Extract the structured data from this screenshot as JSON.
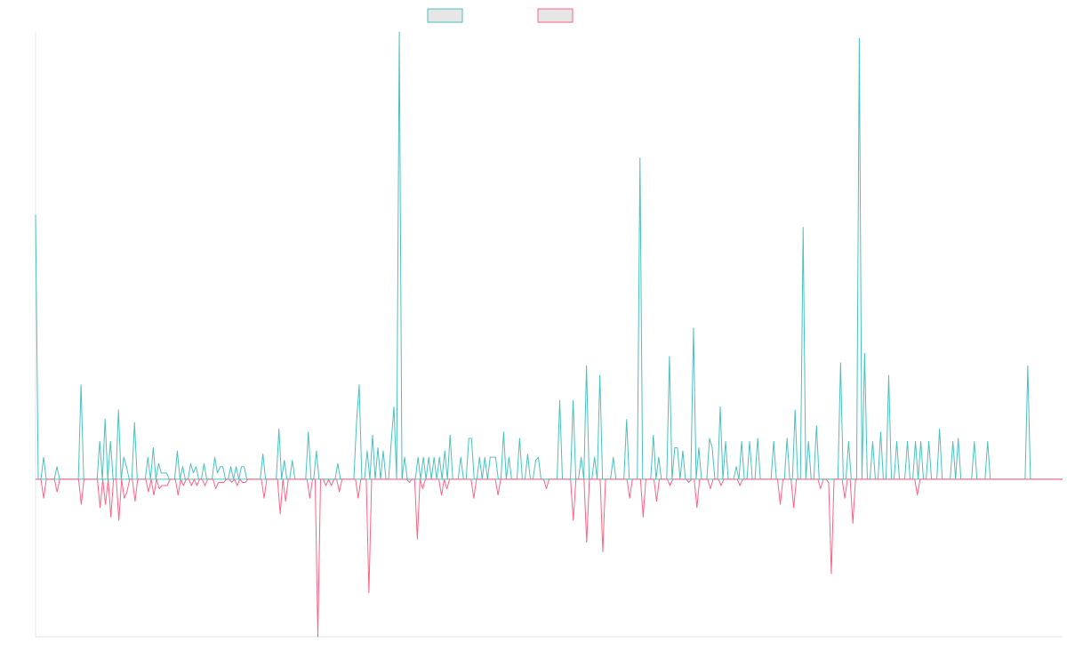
{
  "chart_data": {
    "type": "line",
    "title": "",
    "xlabel": "",
    "ylabel": "",
    "ylim": [
      -25,
      71
    ],
    "grid": false,
    "legend_position": "top-center",
    "colors": {
      "positive": "#4bc0c0",
      "negative": "#ff6384",
      "legend_fill": "#e6e6e6"
    },
    "series": [
      {
        "name": "",
        "values": [
          42,
          0,
          0,
          3.5,
          0,
          0,
          0,
          0,
          2,
          0,
          0,
          0,
          0,
          0,
          0,
          0,
          0,
          15,
          0,
          0,
          0,
          0,
          0,
          0,
          6,
          0,
          9.5,
          0,
          6,
          0,
          0,
          11,
          0,
          3.5,
          2,
          0,
          0,
          9,
          0,
          0,
          0,
          0,
          3.5,
          0,
          5,
          0,
          2.5,
          1,
          1,
          1,
          0,
          0,
          0,
          4.5,
          0,
          2,
          0,
          0,
          2.5,
          1,
          2,
          0,
          0,
          2.5,
          0,
          0,
          0,
          3.5,
          1,
          2,
          2,
          0,
          0,
          2,
          0,
          2,
          0,
          2,
          2,
          0,
          0,
          0,
          0,
          0,
          0,
          4,
          0,
          0,
          0,
          0,
          0,
          8,
          0,
          3,
          0,
          0,
          3,
          0,
          0,
          0,
          0,
          0,
          7.5,
          0,
          0,
          4.5,
          0,
          0,
          0,
          0,
          0,
          0,
          0,
          2.5,
          0,
          0,
          0,
          0,
          0,
          0,
          9,
          15,
          0,
          0,
          4.5,
          0,
          7,
          0,
          5,
          0,
          4.5,
          0,
          0,
          6,
          11.5,
          0,
          71,
          0,
          3.5,
          0,
          0,
          0,
          0,
          3.5,
          0,
          3.5,
          0,
          3.5,
          0,
          3.5,
          0,
          3.5,
          0,
          4.5,
          0,
          7,
          0,
          0,
          0,
          3.5,
          0,
          0,
          6.5,
          6.5,
          0,
          0,
          3.5,
          0,
          3.5,
          0,
          3.5,
          3.5,
          3.5,
          0,
          0,
          7.5,
          0,
          3.5,
          0,
          0,
          0,
          6.5,
          0,
          0,
          4,
          0,
          0,
          3,
          3.5,
          0,
          0,
          0,
          0,
          0,
          0,
          0,
          12.5,
          0,
          0,
          0,
          0,
          12.5,
          0,
          0,
          3.5,
          0,
          18,
          0,
          0,
          3.5,
          0,
          16.5,
          0,
          0,
          0,
          0,
          3.5,
          0,
          0,
          0,
          0,
          9.5,
          0,
          0,
          0,
          0,
          51,
          0,
          0,
          0,
          0,
          7,
          0,
          3.5,
          0,
          0,
          0,
          19.5,
          0,
          5,
          5,
          0,
          4.5,
          0,
          0,
          0,
          24,
          0,
          5,
          0,
          0,
          0,
          6.5,
          5,
          0,
          0,
          11.5,
          0,
          6,
          0,
          0,
          0,
          2,
          0,
          6,
          0,
          0,
          6,
          0,
          0,
          6.5,
          0,
          0,
          0,
          0,
          0,
          6,
          0,
          0,
          0,
          0,
          6.5,
          0,
          0,
          11,
          0,
          0,
          40,
          0,
          6,
          0,
          0,
          8.5,
          0,
          0,
          0,
          0,
          0,
          0,
          0,
          0,
          18.5,
          0,
          0,
          6,
          0,
          0,
          0,
          70,
          0,
          20,
          0,
          0,
          6,
          0,
          0,
          7.5,
          0,
          0,
          16.5,
          0,
          0,
          6,
          0,
          0,
          0,
          6,
          0,
          0,
          6,
          0,
          6,
          0,
          0,
          6,
          0,
          0,
          0,
          8,
          0,
          0,
          0,
          0,
          6,
          0,
          6.5,
          0,
          0,
          0,
          0,
          0,
          6,
          0,
          0,
          0,
          0,
          6,
          0,
          0,
          0,
          0,
          0,
          0,
          0,
          0,
          0,
          0,
          0,
          0,
          0,
          0,
          18,
          0,
          0,
          0,
          0,
          0,
          0,
          0,
          0,
          0,
          0,
          0,
          0,
          0
        ]
      },
      {
        "name": "",
        "values": [
          0,
          0,
          0,
          -3,
          0,
          0,
          0,
          0,
          -2,
          0,
          0,
          0,
          0,
          0,
          0,
          0,
          0,
          -4,
          0,
          0,
          0,
          0,
          0,
          0,
          -4.5,
          0,
          -4,
          0,
          -6,
          0,
          0,
          -6.5,
          0,
          -3,
          -2,
          0,
          0,
          -3.5,
          0,
          0,
          0,
          0,
          -2,
          0,
          -2.5,
          0,
          -1.5,
          -1,
          -1,
          -1,
          0,
          0,
          0,
          -2.5,
          0,
          -1,
          0,
          0,
          -1,
          0,
          -1,
          0,
          0,
          -1,
          0,
          0,
          0,
          -1.5,
          -0.5,
          -0.5,
          -0.5,
          0,
          0,
          -0.5,
          0,
          -1,
          0,
          -0.5,
          -0.5,
          0,
          0,
          0,
          0,
          0,
          0,
          -3,
          0,
          0,
          0,
          0,
          0,
          -5.5,
          0,
          -3.5,
          0,
          0,
          0,
          0,
          0,
          0,
          0,
          0,
          -3,
          0,
          0,
          -25,
          0,
          0,
          -1,
          0,
          -1,
          0,
          0,
          -2,
          0,
          0,
          0,
          0,
          0,
          0,
          -3,
          0,
          0,
          0,
          -18,
          0,
          0,
          0,
          0,
          0,
          0,
          0,
          0,
          0,
          0,
          0,
          0,
          0,
          0,
          -0.5,
          0,
          0,
          -9.5,
          0,
          -1.5,
          0,
          0,
          0,
          0,
          0,
          0,
          -2.5,
          0,
          -1.5,
          0,
          0,
          0,
          0,
          0,
          0,
          0,
          0,
          0,
          -3,
          0,
          0,
          0,
          0,
          0,
          0,
          0,
          0,
          -2.5,
          0,
          0,
          0,
          0,
          0,
          0,
          0,
          0,
          0,
          0,
          0,
          0,
          0,
          0,
          0,
          0,
          0,
          -1.5,
          0,
          0,
          0,
          0,
          0,
          0,
          0,
          0,
          0,
          -6.5,
          0,
          0,
          0,
          0,
          -10,
          0,
          0,
          0,
          0,
          0,
          -11.5,
          0,
          0,
          0,
          0,
          0,
          0,
          0,
          0,
          0,
          -3,
          0,
          0,
          0,
          0,
          -6,
          0,
          0,
          0,
          0,
          -3.5,
          0,
          0,
          0,
          0,
          -1,
          0,
          0,
          0,
          0,
          0,
          0,
          -0.5,
          0,
          0,
          -4.5,
          0,
          0,
          0,
          0,
          -1.5,
          0,
          0,
          0,
          -1,
          0,
          0,
          0,
          0,
          0,
          0,
          -1,
          0,
          0,
          0,
          0,
          0,
          0,
          0,
          0,
          0,
          0,
          0,
          0,
          0,
          0,
          -4,
          0,
          0,
          0,
          0,
          -4.5,
          0,
          0,
          0,
          0,
          0,
          0,
          0,
          0,
          0,
          -1.5,
          0,
          0,
          -0.5,
          -15,
          0,
          0,
          0,
          0,
          -3,
          0,
          0,
          -7,
          0,
          0,
          0,
          0,
          0,
          0,
          0,
          0,
          0,
          0,
          0,
          0,
          0,
          0,
          0,
          0,
          0,
          0,
          0,
          0,
          0,
          0,
          0,
          -2.5,
          0,
          0,
          0,
          0,
          0,
          0,
          0,
          0,
          0,
          0,
          0,
          0,
          0,
          0,
          0,
          0,
          0,
          0,
          0,
          0,
          0,
          0,
          0,
          0,
          0,
          0,
          0,
          0,
          0,
          0,
          0,
          0,
          0,
          0,
          0,
          0,
          0,
          0,
          0,
          0,
          0,
          0,
          0,
          0,
          0,
          0,
          0,
          0,
          0,
          0,
          0,
          0,
          0,
          0
        ]
      }
    ]
  }
}
